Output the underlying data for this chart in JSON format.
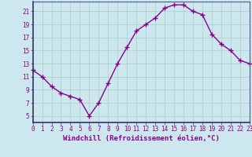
{
  "x": [
    0,
    1,
    2,
    3,
    4,
    5,
    6,
    7,
    8,
    9,
    10,
    11,
    12,
    13,
    14,
    15,
    16,
    17,
    18,
    19,
    20,
    21,
    22,
    23
  ],
  "y": [
    12.0,
    11.0,
    9.5,
    8.5,
    8.0,
    7.5,
    5.0,
    7.0,
    10.0,
    13.0,
    15.5,
    18.0,
    19.0,
    20.0,
    21.5,
    22.0,
    22.0,
    21.0,
    20.5,
    17.5,
    16.0,
    15.0,
    13.5,
    13.0
  ],
  "xlim": [
    0,
    23
  ],
  "ylim": [
    4,
    22.5
  ],
  "yticks": [
    5,
    7,
    9,
    11,
    13,
    15,
    17,
    19,
    21
  ],
  "xticks": [
    0,
    1,
    2,
    3,
    4,
    5,
    6,
    7,
    8,
    9,
    10,
    11,
    12,
    13,
    14,
    15,
    16,
    17,
    18,
    19,
    20,
    21,
    22,
    23
  ],
  "xlabel": "Windchill (Refroidissement éolien,°C)",
  "line_color": "#880088",
  "marker": "+",
  "bg_color": "#cce8ee",
  "grid_color": "#aacccc",
  "spine_color": "#555588",
  "tick_color": "#880088",
  "label_color": "#880088",
  "marker_size": 4,
  "line_width": 1.0,
  "tick_fontsize": 5.5,
  "xlabel_fontsize": 6.5
}
